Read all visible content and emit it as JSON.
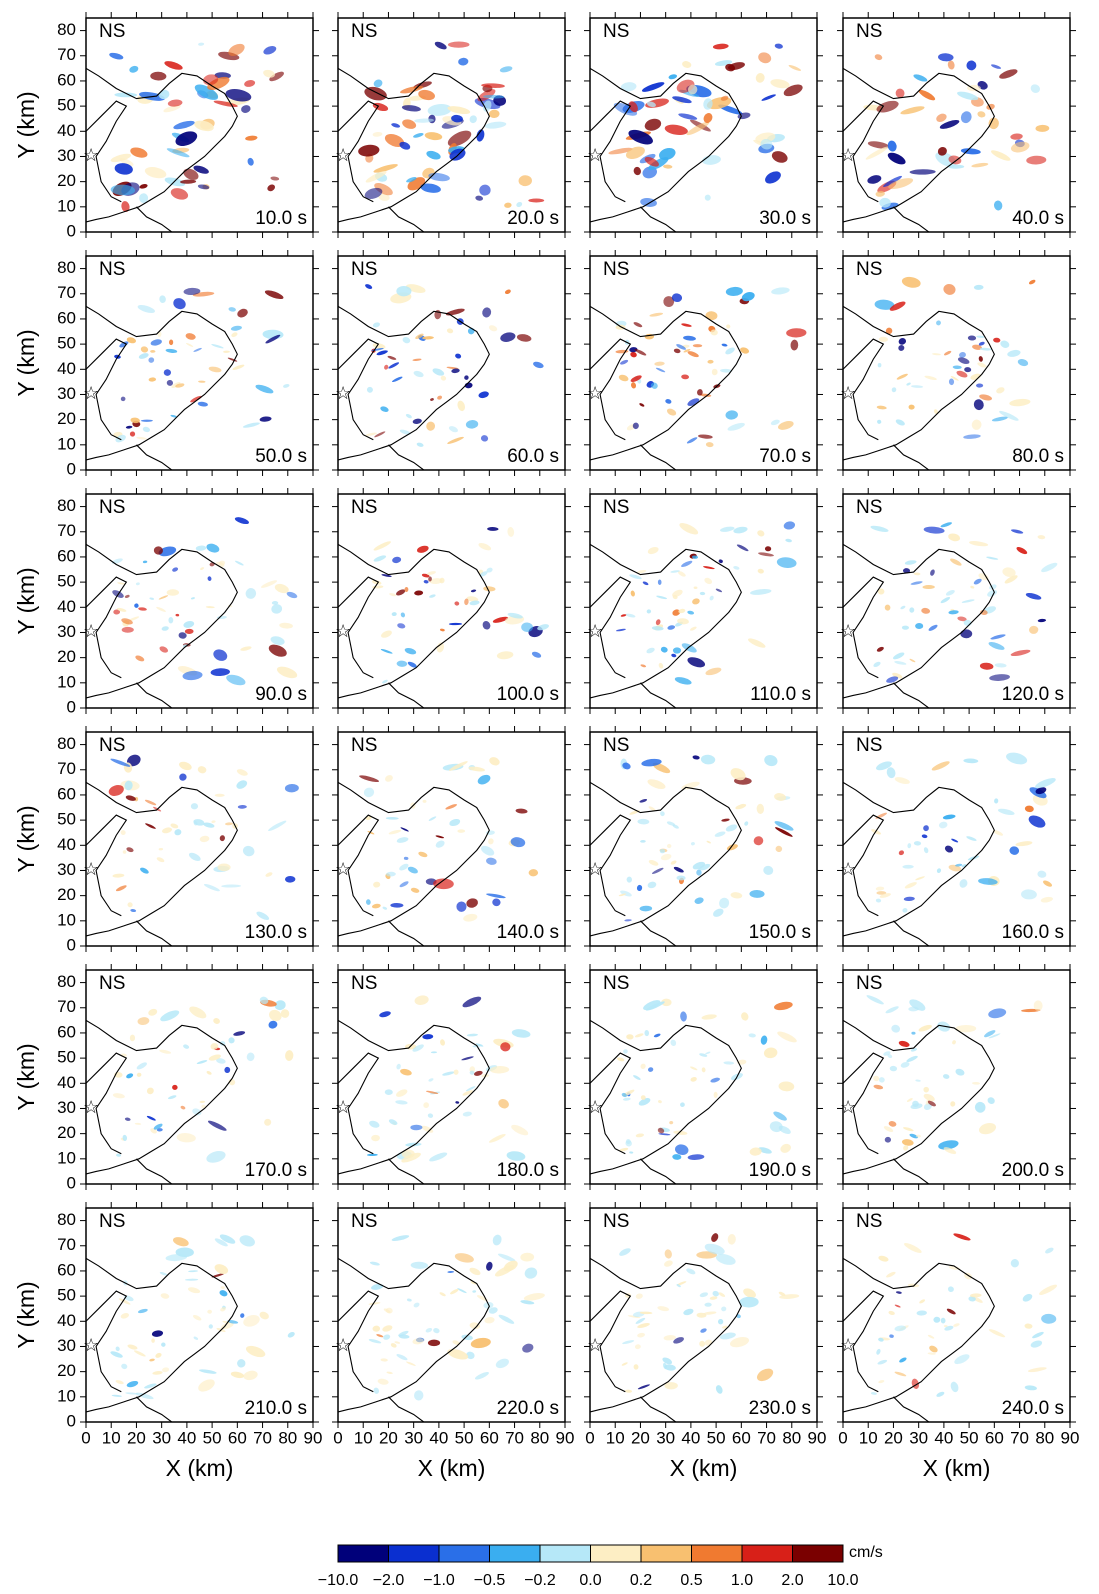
{
  "chart_data": {
    "type": "heatmap-grid",
    "component_label": "NS",
    "panels": [
      "10.0 s",
      "20.0 s",
      "30.0 s",
      "40.0 s",
      "50.0 s",
      "60.0 s",
      "70.0 s",
      "80.0 s",
      "90.0 s",
      "100.0 s",
      "110.0 s",
      "120.0 s",
      "130.0 s",
      "140.0 s",
      "150.0 s",
      "160.0 s",
      "170.0 s",
      "180.0 s",
      "190.0 s",
      "200.0 s",
      "210.0 s",
      "220.0 s",
      "230.0 s",
      "240.0 s"
    ],
    "xlabel": "X (km)",
    "ylabel": "Y (km)",
    "xlim": [
      0,
      90
    ],
    "ylim": [
      0,
      85
    ],
    "xticks": [
      0,
      10,
      20,
      30,
      40,
      50,
      60,
      70,
      80,
      90
    ],
    "yticks": [
      0,
      10,
      20,
      30,
      40,
      50,
      60,
      70,
      80
    ],
    "colorbar": {
      "unit": "cm/s",
      "colors": [
        "#00007a",
        "#0a2fd0",
        "#2a6fe8",
        "#3aaef0",
        "#b6e8f8",
        "#fdeec4",
        "#f8c070",
        "#f07a30",
        "#d82018",
        "#7a0000"
      ],
      "ticks": [
        {
          "value": -10,
          "label": "−10.0"
        },
        {
          "value": -2,
          "label": "−2.0"
        },
        {
          "value": -1,
          "label": "−1.0"
        },
        {
          "value": -0.5,
          "label": "−0.5"
        },
        {
          "value": -0.2,
          "label": "−0.2"
        },
        {
          "value": 0,
          "label": "0.0"
        },
        {
          "value": 0.2,
          "label": "0.2"
        },
        {
          "value": 0.5,
          "label": "0.5"
        },
        {
          "value": 1,
          "label": "1.0"
        },
        {
          "value": 2,
          "label": "2.0"
        },
        {
          "value": 10,
          "label": "10.0"
        }
      ]
    }
  }
}
